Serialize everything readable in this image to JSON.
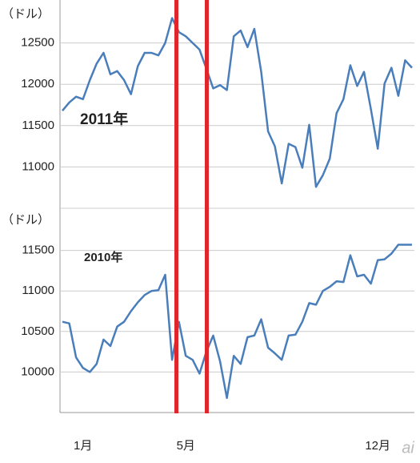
{
  "chart_data": [
    {
      "type": "line",
      "y_label": "（ドル）",
      "annotation": "2011年",
      "color": "#4a7ebb",
      "values": [
        11680,
        11780,
        11850,
        11820,
        12050,
        12250,
        12380,
        12120,
        12160,
        12050,
        11880,
        12220,
        12380,
        12380,
        12350,
        12500,
        12800,
        12630,
        12580,
        12500,
        12420,
        12190,
        11950,
        11990,
        11930,
        12580,
        12650,
        12450,
        12670,
        12150,
        11430,
        11250,
        10800,
        11280,
        11240,
        10990,
        11510,
        10760,
        10900,
        11100,
        11650,
        11820,
        12230,
        11980,
        12150,
        11700,
        11220,
        12010,
        12200,
        11860,
        12290,
        12200
      ],
      "ylim": [
        10500,
        13000
      ],
      "yticks": [
        11000,
        11500,
        12000,
        12500
      ],
      "grid": true
    },
    {
      "type": "line",
      "y_label": "（ドル）",
      "annotation": "2010年",
      "color": "#4a7ebb",
      "categories": [
        null,
        null,
        null,
        "1月",
        null,
        null,
        null,
        null,
        null,
        null,
        null,
        null,
        null,
        null,
        null,
        null,
        null,
        null,
        "5月",
        null,
        null,
        null,
        null,
        null,
        null,
        null,
        null,
        null,
        null,
        null,
        null,
        null,
        null,
        null,
        null,
        null,
        null,
        null,
        null,
        null,
        null,
        null,
        null,
        null,
        null,
        null,
        "12月",
        null,
        null,
        null,
        null,
        null
      ],
      "values": [
        10620,
        10600,
        10180,
        10050,
        10000,
        10100,
        10400,
        10320,
        10560,
        10620,
        10750,
        10860,
        10950,
        11000,
        11010,
        11200,
        10150,
        10620,
        10200,
        10150,
        9980,
        10250,
        10450,
        10130,
        9680,
        10200,
        10100,
        10430,
        10450,
        10650,
        10300,
        10230,
        10150,
        10450,
        10460,
        10620,
        10850,
        10830,
        11000,
        11050,
        11120,
        11110,
        11440,
        11180,
        11200,
        11090,
        11380,
        11390,
        11460,
        11570,
        11570,
        11570
      ],
      "ylim": [
        9500,
        12000
      ],
      "yticks": [
        10000,
        10500,
        11000,
        11500
      ],
      "grid": true
    }
  ],
  "watermark": "ai"
}
